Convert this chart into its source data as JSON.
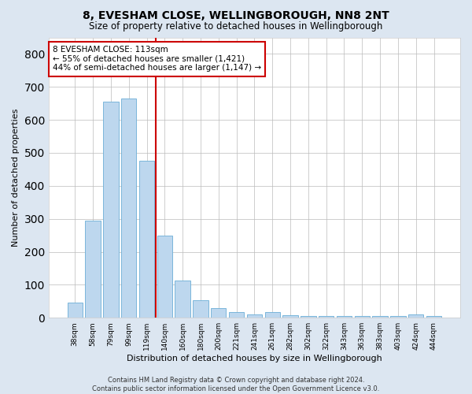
{
  "title": "8, EVESHAM CLOSE, WELLINGBOROUGH, NN8 2NT",
  "subtitle": "Size of property relative to detached houses in Wellingborough",
  "xlabel": "Distribution of detached houses by size in Wellingborough",
  "ylabel": "Number of detached properties",
  "categories": [
    "38sqm",
    "58sqm",
    "79sqm",
    "99sqm",
    "119sqm",
    "140sqm",
    "160sqm",
    "180sqm",
    "200sqm",
    "221sqm",
    "241sqm",
    "261sqm",
    "282sqm",
    "302sqm",
    "322sqm",
    "343sqm",
    "363sqm",
    "383sqm",
    "403sqm",
    "424sqm",
    "444sqm"
  ],
  "values": [
    45,
    295,
    655,
    665,
    475,
    250,
    112,
    52,
    29,
    18,
    10,
    18,
    7,
    6,
    6,
    6,
    6,
    6,
    6,
    10,
    6
  ],
  "bar_color": "#bdd7ee",
  "bar_edge_color": "#6baed6",
  "vline_x_index": 4,
  "vline_color": "#cc0000",
  "annotation_text": "8 EVESHAM CLOSE: 113sqm\n← 55% of detached houses are smaller (1,421)\n44% of semi-detached houses are larger (1,147) →",
  "annotation_box_color": "#ffffff",
  "annotation_box_edge_color": "#cc0000",
  "footnote": "Contains HM Land Registry data © Crown copyright and database right 2024.\nContains public sector information licensed under the Open Government Licence v3.0.",
  "background_color": "#dce6f1",
  "plot_background_color": "#ffffff",
  "ylim": [
    0,
    850
  ],
  "grid_color": "#bbbbbb",
  "yticks": [
    0,
    100,
    200,
    300,
    400,
    500,
    600,
    700,
    800
  ]
}
